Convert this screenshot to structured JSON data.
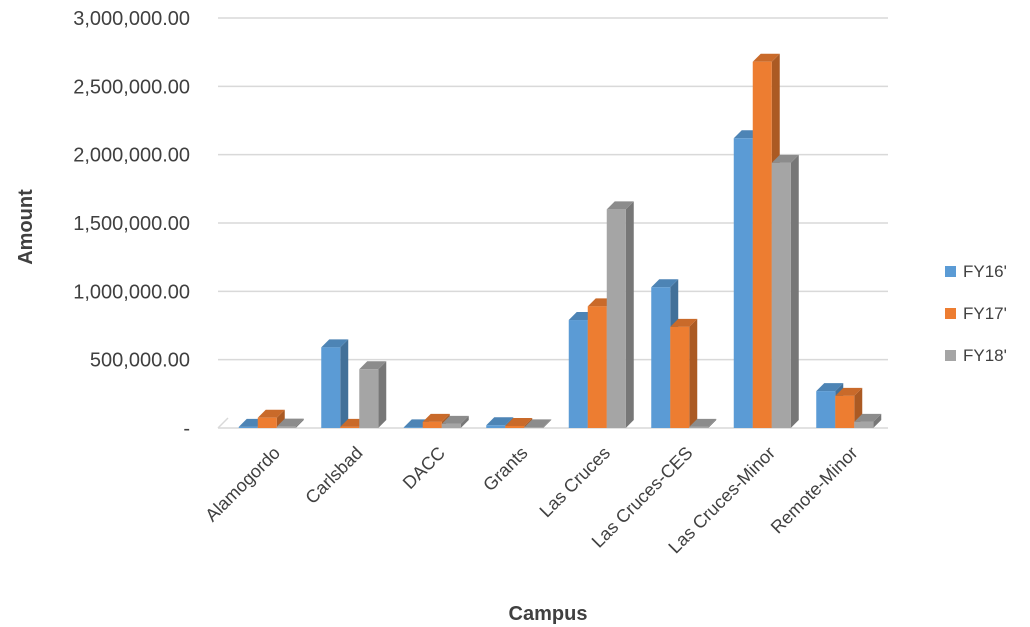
{
  "chart_data": {
    "type": "bar",
    "title": "",
    "xlabel": "Campus",
    "ylabel": "Amount",
    "categories": [
      "Alamogordo",
      "Carlsbad",
      "DACC",
      "Grants",
      "Las Cruces",
      "Las Cruces-CES",
      "Las Cruces-Minor",
      "Remote-Minor"
    ],
    "series": [
      {
        "name": "FY16'",
        "color": "#5b9bd5",
        "values": [
          8000,
          590000,
          5000,
          20000,
          790000,
          1030000,
          2120000,
          270000
        ]
      },
      {
        "name": "FY17'",
        "color": "#ed7d31",
        "values": [
          75000,
          8000,
          45000,
          15000,
          890000,
          740000,
          2680000,
          235000
        ]
      },
      {
        "name": "FY18'",
        "color": "#a5a5a5",
        "values": [
          10000,
          430000,
          30000,
          5000,
          1600000,
          8000,
          1940000,
          45000
        ]
      }
    ],
    "ylim": [
      0,
      3000000
    ],
    "y_ticks": [
      {
        "value": 0,
        "label": "-"
      },
      {
        "value": 500000,
        "label": "500,000.00"
      },
      {
        "value": 1000000,
        "label": "1,000,000.00"
      },
      {
        "value": 1500000,
        "label": "1,500,000.00"
      },
      {
        "value": 2000000,
        "label": "2,000,000.00"
      },
      {
        "value": 2500000,
        "label": "2,500,000.00"
      },
      {
        "value": 3000000,
        "label": "3,000,000.00"
      }
    ],
    "grid": true,
    "legend_position": "right",
    "style": "3d-column"
  }
}
